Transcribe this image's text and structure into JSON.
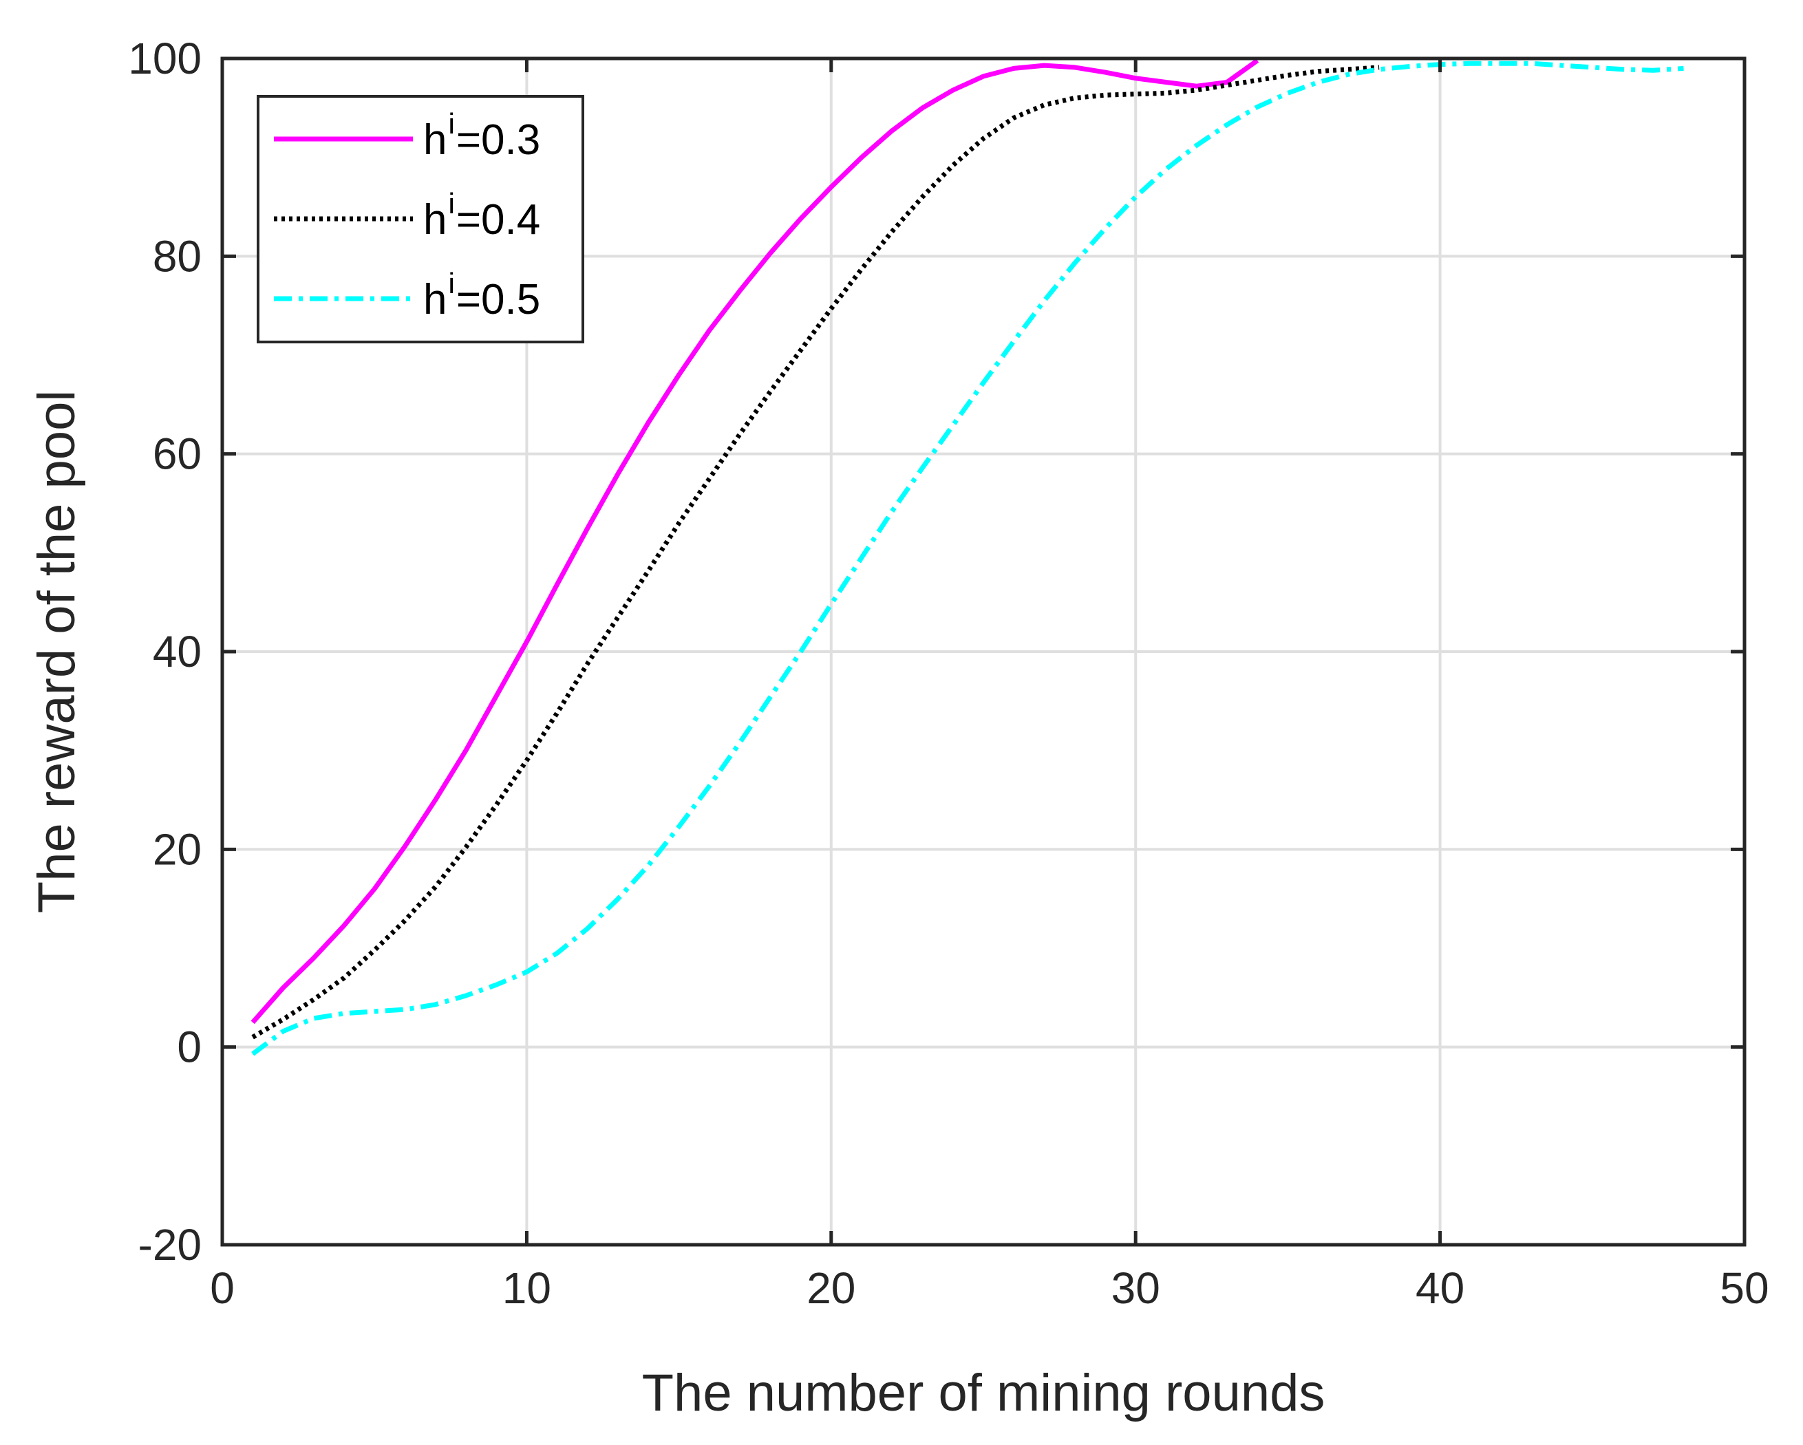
{
  "chart_data": {
    "type": "line",
    "title": "",
    "xlabel": "The number of mining rounds",
    "ylabel": "The reward of the pool",
    "xlim": [
      0,
      50
    ],
    "ylim": [
      -20,
      100
    ],
    "xticks": [
      0,
      10,
      20,
      30,
      40,
      50
    ],
    "yticks": [
      -20,
      0,
      20,
      40,
      60,
      80,
      100
    ],
    "grid": true,
    "legend_position": "top-left",
    "series": [
      {
        "name": "h^i=0.3",
        "legend_base": "h",
        "legend_sup": "i",
        "legend_rest": "=0.3",
        "color": "#ff00ff",
        "style": "solid",
        "x": [
          1,
          2,
          3,
          4,
          5,
          6,
          7,
          8,
          9,
          10,
          11,
          12,
          13,
          14,
          15,
          16,
          17,
          18,
          19,
          20,
          21,
          22,
          23,
          24,
          25,
          26,
          27,
          28,
          29,
          30,
          31,
          32,
          33,
          34
        ],
        "values": [
          2.5,
          6,
          9,
          12.3,
          16,
          20.3,
          25,
          30,
          35.5,
          41,
          46.8,
          52.5,
          58,
          63.2,
          68,
          72.5,
          76.5,
          80.3,
          83.8,
          87,
          90,
          92.7,
          95,
          96.8,
          98.2,
          99,
          99.3,
          99.1,
          98.6,
          98,
          97.6,
          97.2,
          97.6,
          99.8
        ]
      },
      {
        "name": "h^i=0.4",
        "legend_base": "h",
        "legend_sup": "i",
        "legend_rest": "=0.4",
        "color": "#000000",
        "style": "dotted",
        "x": [
          1,
          2,
          3,
          4,
          5,
          6,
          7,
          8,
          9,
          10,
          11,
          12,
          13,
          14,
          15,
          16,
          17,
          18,
          19,
          20,
          21,
          22,
          23,
          24,
          25,
          26,
          27,
          28,
          29,
          30,
          31,
          32,
          33,
          34,
          35,
          36,
          37,
          38
        ],
        "values": [
          1,
          2.8,
          4.8,
          7,
          9.8,
          12.8,
          16.2,
          20.2,
          24.5,
          29,
          33.8,
          38.8,
          43.5,
          48.2,
          53,
          57.5,
          62,
          66.3,
          70.5,
          74.7,
          78.7,
          82.5,
          86,
          89.2,
          91.9,
          94,
          95.3,
          96,
          96.3,
          96.4,
          96.5,
          96.8,
          97.3,
          97.8,
          98.3,
          98.7,
          98.9,
          99.1
        ]
      },
      {
        "name": "h^i=0.5",
        "legend_base": "h",
        "legend_sup": "i",
        "legend_rest": "=0.5",
        "color": "#00ffff",
        "style": "dashdot",
        "x": [
          1,
          2,
          3,
          4,
          5,
          6,
          7,
          8,
          9,
          10,
          11,
          12,
          13,
          14,
          15,
          16,
          17,
          18,
          19,
          20,
          21,
          22,
          23,
          24,
          25,
          26,
          27,
          28,
          29,
          30,
          31,
          32,
          33,
          34,
          35,
          36,
          37,
          38,
          39,
          40,
          41,
          42,
          43,
          44,
          45,
          46,
          47,
          48
        ],
        "values": [
          -0.7,
          1.6,
          2.9,
          3.4,
          3.6,
          3.8,
          4.3,
          5.2,
          6.3,
          7.6,
          9.5,
          12,
          15,
          18.4,
          22.3,
          26.4,
          30.8,
          35.4,
          40,
          44.8,
          49.5,
          54.2,
          58.6,
          62.9,
          67.2,
          71.4,
          75.5,
          79.3,
          82.8,
          86,
          88.8,
          91.2,
          93.3,
          95.1,
          96.5,
          97.6,
          98.4,
          98.9,
          99.2,
          99.4,
          99.5,
          99.5,
          99.5,
          99.3,
          99.1,
          98.9,
          98.8,
          99
        ]
      }
    ]
  }
}
